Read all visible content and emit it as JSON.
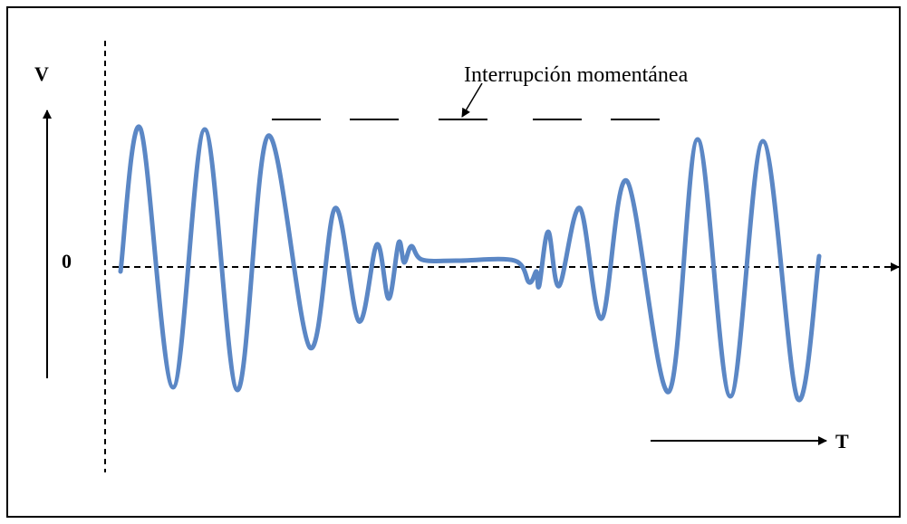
{
  "labels": {
    "v_axis": "V",
    "zero": "0",
    "t_axis": "T",
    "annotation": "Interrupción momentánea"
  },
  "colors": {
    "wave": "#5b87c5",
    "axis": "#000000",
    "border": "#000000",
    "background": "#ffffff"
  }
}
